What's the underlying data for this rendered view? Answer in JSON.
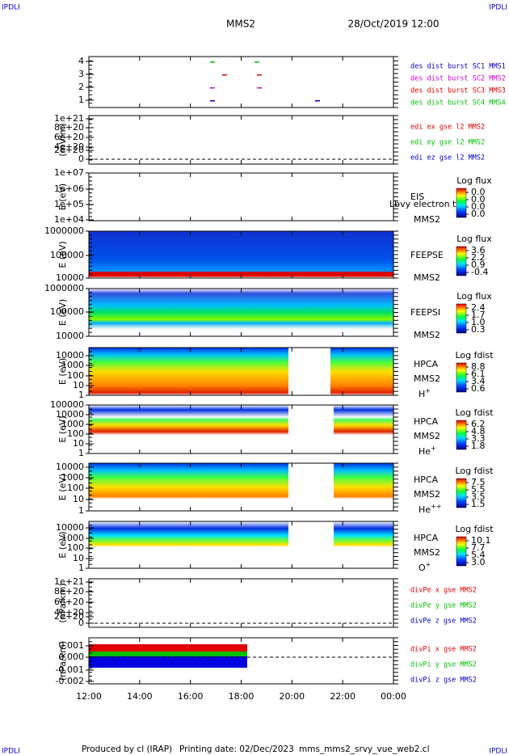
{
  "header": {
    "corner_left": "IPDLI",
    "corner_right": "IPDLI",
    "title": "MMS2",
    "datetime": "28/Oct/2019 12:00"
  },
  "panels": [
    {
      "ylabel": "",
      "yticks": [
        "4",
        "3",
        "2",
        "1"
      ],
      "labels": [
        {
          "text": "des dist burst SC1 MMS1",
          "color": "#0000c0"
        },
        {
          "text": "des dist burst SC2 MMS2",
          "color": "#d000d0"
        },
        {
          "text": "des dist burst SC3 MMS3",
          "color": "#e00000"
        },
        {
          "text": "des dist burst SC4 MMS4",
          "color": "#00c000"
        }
      ]
    },
    {
      "ylabel": "(mV/m)",
      "yticks": [
        "1e+21",
        "8e+20",
        "6e+20",
        "4e+20",
        "2e+20",
        "0"
      ],
      "labels": [
        {
          "text": "edi ex gse l2 MMS2",
          "color": "#e00000"
        },
        {
          "text": "edi ey gse l2 MMS2",
          "color": "#00c000"
        },
        {
          "text": "edi ez gse l2 MMS2",
          "color": "#0000c0"
        }
      ]
    },
    {
      "ylabel": "E (eV)",
      "yticks": [
        "1e+07",
        "1e+06",
        "1e+05",
        "1e+04"
      ],
      "instrument": "EIS",
      "probe": "MMS2",
      "note": "Lbvy electron tof",
      "cb_title": "Log flux",
      "cb_ticks": [
        "0.0",
        "0.0",
        "0.0",
        "0.0"
      ]
    },
    {
      "ylabel": "E (eV)",
      "yticks": [
        "1000000",
        "100000",
        "10000"
      ],
      "instrument": "FEEPSE",
      "probe": "MMS2",
      "cb_title": "Log flux",
      "cb_ticks": [
        "3.6",
        "2.2",
        "0.9",
        "-0.4"
      ]
    },
    {
      "ylabel": "E (eV)",
      "yticks": [
        "1000000",
        "100000",
        "10000"
      ],
      "instrument": "FEEPSI",
      "probe": "MMS2",
      "cb_title": "Log flux",
      "cb_ticks": [
        "2.4",
        "1.7",
        "1.0",
        "0.3"
      ]
    },
    {
      "ylabel": "E (eV)",
      "yticks": [
        "10000",
        "1000",
        "100",
        "10",
        "1"
      ],
      "instrument": "HPCA",
      "probe": "MMS2",
      "species": "H",
      "species_sup": "+",
      "cb_title": "Log fdist",
      "cb_ticks": [
        "8.8",
        "6.1",
        "3.4",
        "0.6"
      ]
    },
    {
      "ylabel": "E (eV)",
      "yticks": [
        "100000",
        "10000",
        "1000",
        "100",
        "10",
        "1"
      ],
      "instrument": "HPCA",
      "probe": "MMS2",
      "species": "He",
      "species_sup": "+",
      "cb_title": "Log fdist",
      "cb_ticks": [
        "6.2",
        "4.8",
        "3.3",
        "1.8"
      ]
    },
    {
      "ylabel": "E (eV)",
      "yticks": [
        "10000",
        "1000",
        "100",
        "10",
        "1"
      ],
      "instrument": "HPCA",
      "probe": "MMS2",
      "species": "He",
      "species_sup": "++",
      "cb_title": "Log fdist",
      "cb_ticks": [
        "7.5",
        "5.5",
        "3.5",
        "1.5"
      ]
    },
    {
      "ylabel": "E (eV)",
      "yticks": [
        "10000",
        "1000",
        "100",
        "10",
        "1"
      ],
      "instrument": "HPCA",
      "probe": "MMS2",
      "species": "O",
      "species_sup": "+",
      "cb_title": "Log fdist",
      "cb_ticks": [
        "10.1",
        "7.7",
        "5.4",
        "3.0"
      ]
    },
    {
      "ylabel": "(nPa/km)",
      "yticks": [
        "1e+21",
        "8e+20",
        "6e+20",
        "4e+20",
        "2e+20",
        "0"
      ],
      "labels": [
        {
          "text": "divPe x gse MMS2",
          "color": "#e00000"
        },
        {
          "text": "divPe y gse MMS2",
          "color": "#00c000"
        },
        {
          "text": "divPe z gse MMS2",
          "color": "#0000c0"
        }
      ]
    },
    {
      "ylabel": "(nPa/km)",
      "yticks": [
        "0.001",
        "0.000",
        "-0.001",
        "-0.002"
      ],
      "labels": [
        {
          "text": "divPi x gse MMS2",
          "color": "#e00000"
        },
        {
          "text": "divPi y gse MMS2",
          "color": "#00c000"
        },
        {
          "text": "divPi z gse MMS2",
          "color": "#0000c0"
        }
      ]
    }
  ],
  "xticks": [
    "12:00",
    "14:00",
    "16:00",
    "18:00",
    "20:00",
    "22:00",
    "00:00"
  ],
  "footer": {
    "produced": "Produced by cl (IRAP)",
    "printed": "Printing date: 02/Dec/2023",
    "file": "mms_mms2_srvy_vue_web2.cl",
    "corner_left": "IPDLI",
    "corner_right": "IPDLI"
  }
}
